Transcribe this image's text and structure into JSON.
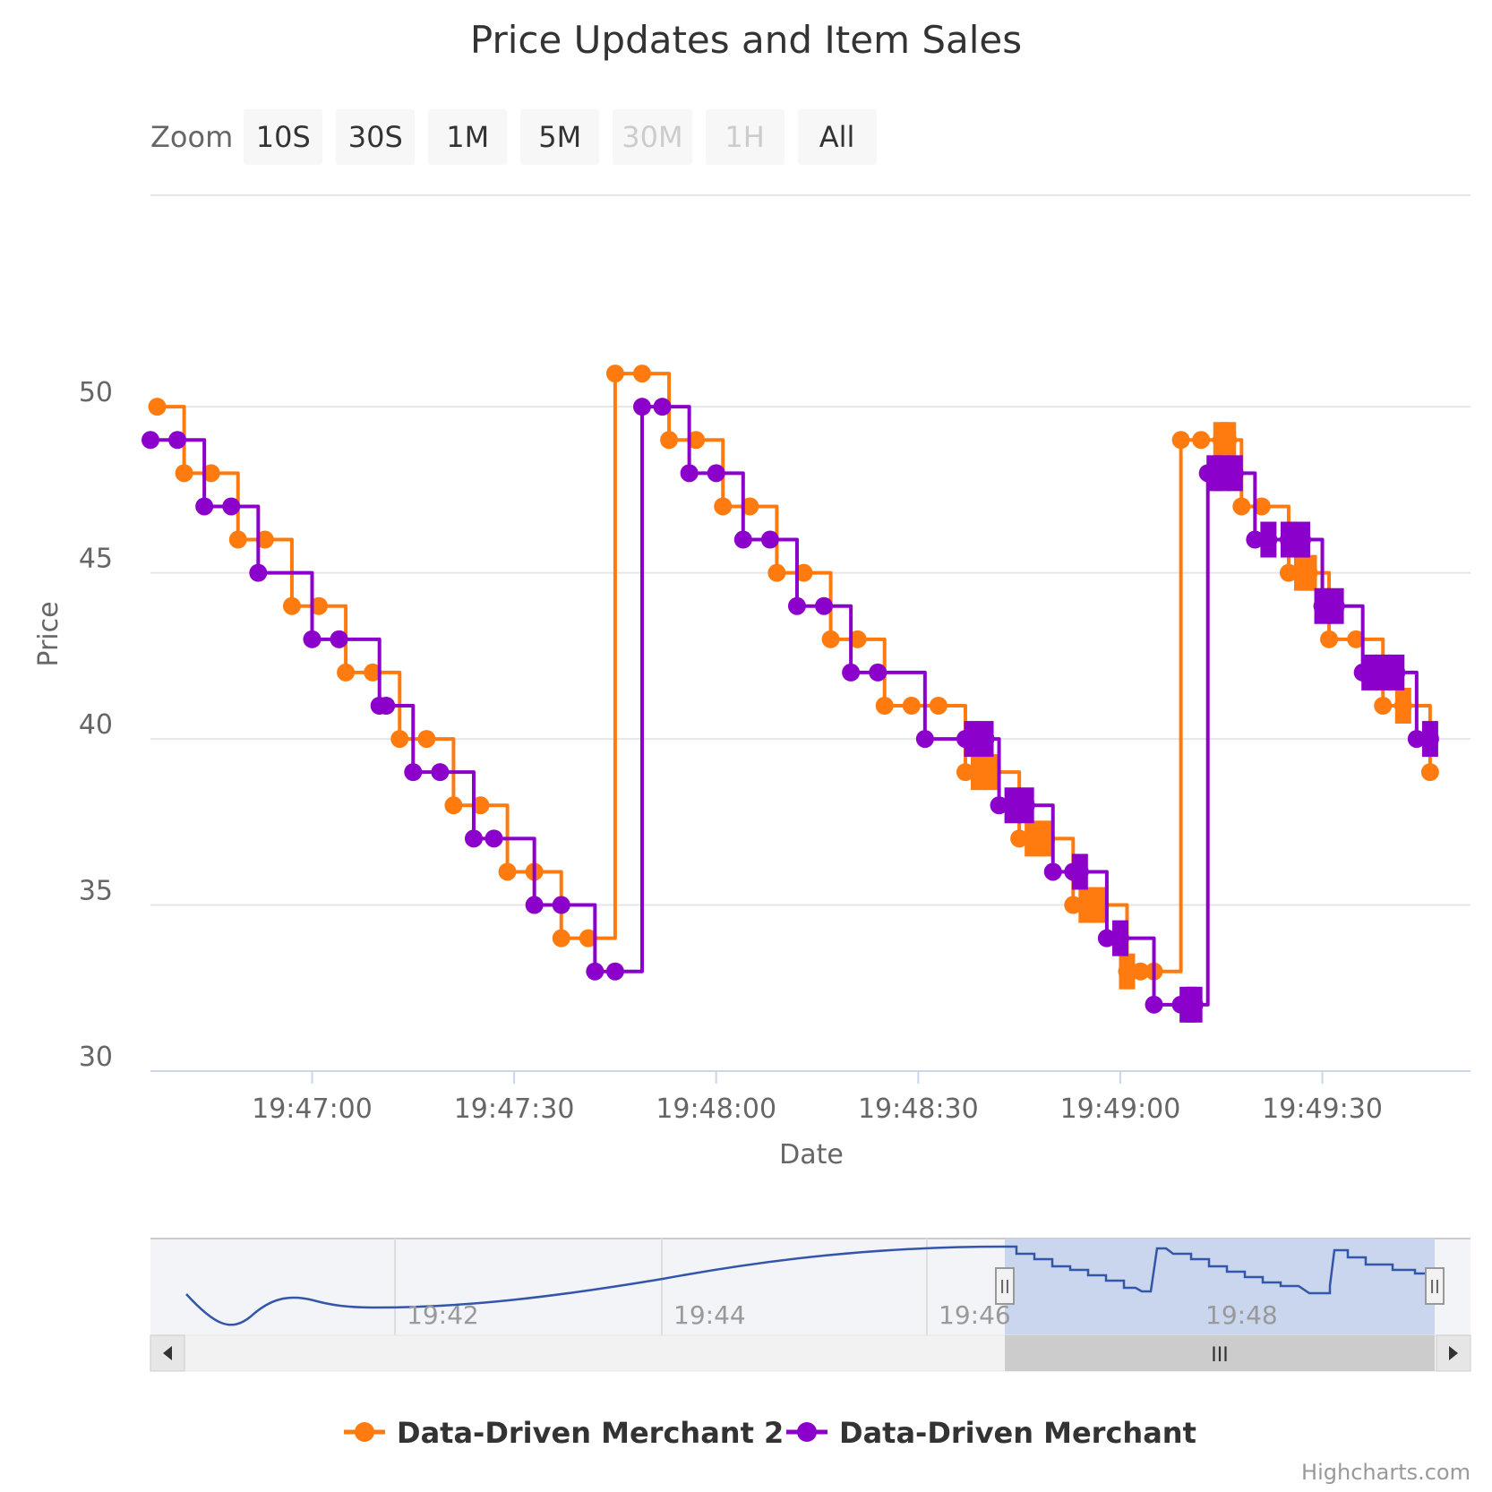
{
  "zoom": {
    "label": "Zoom",
    "buttons": [
      {
        "label": "10S",
        "enabled": true
      },
      {
        "label": "30S",
        "enabled": true
      },
      {
        "label": "1M",
        "enabled": true
      },
      {
        "label": "5M",
        "enabled": true
      },
      {
        "label": "30M",
        "enabled": false
      },
      {
        "label": "1H",
        "enabled": false
      },
      {
        "label": "All",
        "enabled": true
      }
    ]
  },
  "navigator": {
    "tick_labels": [
      "19:42",
      "19:44",
      "19:46",
      "19:48"
    ],
    "scrollbar_grip": "III",
    "handle_grip": "II"
  },
  "credits": "Highcharts.com",
  "chart_data": {
    "type": "line",
    "step": true,
    "title": "Price Updates and Item Sales",
    "xlabel": "Date",
    "ylabel": "Price",
    "ylim": [
      30,
      52
    ],
    "yticks": [
      30,
      35,
      40,
      45,
      50
    ],
    "xticks": [
      "19:47:00",
      "19:47:30",
      "19:48:00",
      "19:48:30",
      "19:49:00",
      "19:49:30"
    ],
    "xlim": [
      "19:46:36",
      "19:49:52"
    ],
    "grid": true,
    "legend_position": "bottom-center",
    "series": [
      {
        "name": "Data-Driven Merchant 2",
        "color": "#FF7B0F",
        "points": [
          [
            "19:46:37",
            50
          ],
          [
            "19:46:41",
            48
          ],
          [
            "19:46:45",
            48
          ],
          [
            "19:46:49",
            46
          ],
          [
            "19:46:53",
            46
          ],
          [
            "19:46:57",
            44
          ],
          [
            "19:47:01",
            44
          ],
          [
            "19:47:05",
            42
          ],
          [
            "19:47:09",
            42
          ],
          [
            "19:47:13",
            40
          ],
          [
            "19:47:17",
            40
          ],
          [
            "19:47:21",
            38
          ],
          [
            "19:47:25",
            38
          ],
          [
            "19:47:29",
            36
          ],
          [
            "19:47:33",
            36
          ],
          [
            "19:47:37",
            34
          ],
          [
            "19:47:41",
            34
          ],
          [
            "19:47:45",
            51
          ],
          [
            "19:47:49",
            51
          ],
          [
            "19:47:53",
            49
          ],
          [
            "19:47:57",
            49
          ],
          [
            "19:48:01",
            47
          ],
          [
            "19:48:05",
            47
          ],
          [
            "19:48:09",
            45
          ],
          [
            "19:48:13",
            45
          ],
          [
            "19:48:17",
            43
          ],
          [
            "19:48:21",
            43
          ],
          [
            "19:48:25",
            41
          ],
          [
            "19:48:29",
            41
          ],
          [
            "19:48:33",
            41
          ],
          [
            "19:48:37",
            39
          ],
          [
            "19:48:39",
            39
          ],
          [
            "19:48:41",
            39
          ],
          [
            "19:48:45",
            37
          ],
          [
            "19:48:47",
            37
          ],
          [
            "19:48:49",
            37
          ],
          [
            "19:48:53",
            35
          ],
          [
            "19:48:55",
            35
          ],
          [
            "19:48:57",
            35
          ],
          [
            "19:49:01",
            33
          ],
          [
            "19:49:03",
            33
          ],
          [
            "19:49:05",
            33
          ],
          [
            "19:49:09",
            49
          ],
          [
            "19:49:12",
            49
          ],
          [
            "19:49:15",
            49
          ],
          [
            "19:49:16",
            49
          ],
          [
            "19:49:18",
            47
          ],
          [
            "19:49:21",
            47
          ],
          [
            "19:49:25",
            45
          ],
          [
            "19:49:27",
            45
          ],
          [
            "19:49:28",
            45
          ],
          [
            "19:49:31",
            43
          ],
          [
            "19:49:35",
            43
          ],
          [
            "19:49:39",
            41
          ],
          [
            "19:49:42",
            41
          ],
          [
            "19:49:46",
            39
          ]
        ],
        "square_markers": [
          [
            "19:48:39",
            39
          ],
          [
            "19:48:41",
            39
          ],
          [
            "19:48:47",
            37
          ],
          [
            "19:48:49",
            37
          ],
          [
            "19:48:55",
            35
          ],
          [
            "19:48:57",
            35
          ],
          [
            "19:49:01",
            33
          ],
          [
            "19:49:15",
            49
          ],
          [
            "19:49:16",
            49
          ],
          [
            "19:49:27",
            45
          ],
          [
            "19:49:28",
            45
          ],
          [
            "19:49:42",
            41
          ]
        ]
      },
      {
        "name": "Data-Driven Merchant",
        "color": "#8C00CC",
        "points": [
          [
            "19:46:36",
            49
          ],
          [
            "19:46:40",
            49
          ],
          [
            "19:46:44",
            47
          ],
          [
            "19:46:48",
            47
          ],
          [
            "19:46:52",
            45
          ],
          [
            "19:47:00",
            43
          ],
          [
            "19:47:04",
            43
          ],
          [
            "19:47:10",
            41
          ],
          [
            "19:47:11",
            41
          ],
          [
            "19:47:15",
            39
          ],
          [
            "19:47:19",
            39
          ],
          [
            "19:47:24",
            37
          ],
          [
            "19:47:27",
            37
          ],
          [
            "19:47:33",
            35
          ],
          [
            "19:47:37",
            35
          ],
          [
            "19:47:42",
            33
          ],
          [
            "19:47:45",
            33
          ],
          [
            "19:47:49",
            50
          ],
          [
            "19:47:52",
            50
          ],
          [
            "19:47:56",
            48
          ],
          [
            "19:48:00",
            48
          ],
          [
            "19:48:04",
            46
          ],
          [
            "19:48:08",
            46
          ],
          [
            "19:48:12",
            44
          ],
          [
            "19:48:16",
            44
          ],
          [
            "19:48:20",
            42
          ],
          [
            "19:48:24",
            42
          ],
          [
            "19:48:31",
            40
          ],
          [
            "19:48:37",
            40
          ],
          [
            "19:48:38",
            40
          ],
          [
            "19:48:40",
            40
          ],
          [
            "19:48:42",
            38
          ],
          [
            "19:48:44",
            38
          ],
          [
            "19:48:46",
            38
          ],
          [
            "19:48:50",
            36
          ],
          [
            "19:48:53",
            36
          ],
          [
            "19:48:54",
            36
          ],
          [
            "19:48:58",
            34
          ],
          [
            "19:49:00",
            34
          ],
          [
            "19:49:05",
            32
          ],
          [
            "19:49:09",
            32
          ],
          [
            "19:49:10",
            32
          ],
          [
            "19:49:11",
            32
          ],
          [
            "19:49:13",
            48
          ],
          [
            "19:49:14",
            48
          ],
          [
            "19:49:15",
            48
          ],
          [
            "19:49:17",
            48
          ],
          [
            "19:49:20",
            46
          ],
          [
            "19:49:22",
            46
          ],
          [
            "19:49:25",
            46
          ],
          [
            "19:49:27",
            46
          ],
          [
            "19:49:30",
            44
          ],
          [
            "19:49:32",
            44
          ],
          [
            "19:49:36",
            42
          ],
          [
            "19:49:37",
            42
          ],
          [
            "19:49:39",
            42
          ],
          [
            "19:49:41",
            42
          ],
          [
            "19:49:44",
            40
          ],
          [
            "19:49:46",
            40
          ]
        ],
        "square_markers": [
          [
            "19:48:38",
            40
          ],
          [
            "19:48:40",
            40
          ],
          [
            "19:48:44",
            38
          ],
          [
            "19:48:46",
            38
          ],
          [
            "19:48:54",
            36
          ],
          [
            "19:49:00",
            34
          ],
          [
            "19:49:10",
            32
          ],
          [
            "19:49:11",
            32
          ],
          [
            "19:49:14",
            48
          ],
          [
            "19:49:15",
            48
          ],
          [
            "19:49:17",
            48
          ],
          [
            "19:49:22",
            46
          ],
          [
            "19:49:25",
            46
          ],
          [
            "19:49:27",
            46
          ],
          [
            "19:49:30",
            44
          ],
          [
            "19:49:32",
            44
          ],
          [
            "19:49:37",
            42
          ],
          [
            "19:49:39",
            42
          ],
          [
            "19:49:41",
            42
          ],
          [
            "19:49:46",
            40
          ]
        ]
      }
    ]
  }
}
